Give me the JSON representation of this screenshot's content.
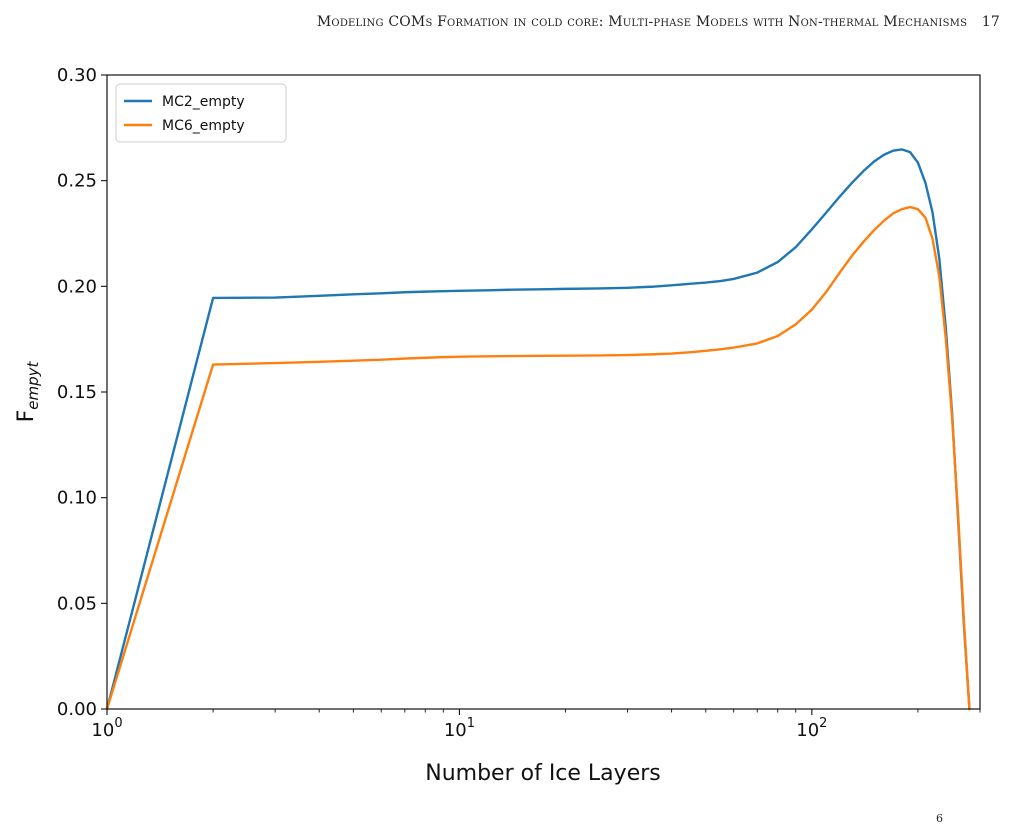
{
  "header": {
    "running_title": "Modeling COMs Formation in cold core: Multi-phase Models with Non-thermal Mechanisms",
    "page_number": "17"
  },
  "footer": {
    "mark": "6"
  },
  "chart_data": {
    "type": "line",
    "title": "",
    "xlabel": "Number of Ice Layers",
    "ylabel_main": "F",
    "ylabel_sub": "empyt",
    "xscale": "log",
    "xlim": [
      1,
      300
    ],
    "ylim": [
      0.0,
      0.3
    ],
    "grid": false,
    "legend_position": "top-left",
    "y_ticks": [
      "0.00",
      "0.05",
      "0.10",
      "0.15",
      "0.20",
      "0.25",
      "0.30"
    ],
    "x_ticks": [
      {
        "value": 1,
        "base": "10",
        "exp": "0"
      },
      {
        "value": 10,
        "base": "10",
        "exp": "1"
      },
      {
        "value": 100,
        "base": "10",
        "exp": "2"
      }
    ],
    "series": [
      {
        "name": "MC2_empty",
        "color": "#1f77b4",
        "x": [
          1,
          2,
          3,
          4,
          5,
          6,
          7,
          8,
          9,
          10,
          12,
          14,
          17,
          20,
          25,
          30,
          35,
          40,
          45,
          50,
          55,
          60,
          70,
          80,
          90,
          100,
          110,
          120,
          130,
          140,
          150,
          160,
          170,
          180,
          190,
          200,
          210,
          220,
          230,
          240,
          250,
          260,
          270,
          280
        ],
        "y": [
          0.0,
          0.1945,
          0.1947,
          0.1955,
          0.1962,
          0.1967,
          0.1972,
          0.1975,
          0.1977,
          0.1979,
          0.1981,
          0.1984,
          0.1986,
          0.1988,
          0.199,
          0.1993,
          0.1998,
          0.2005,
          0.2012,
          0.2018,
          0.2025,
          0.2035,
          0.2065,
          0.2115,
          0.2185,
          0.227,
          0.235,
          0.2425,
          0.249,
          0.2545,
          0.259,
          0.2622,
          0.2642,
          0.2648,
          0.2635,
          0.2585,
          0.249,
          0.235,
          0.213,
          0.18,
          0.14,
          0.09,
          0.04,
          0.0
        ]
      },
      {
        "name": "MC6_empty",
        "color": "#ff7f0e",
        "x": [
          1,
          2,
          3,
          4,
          5,
          6,
          7,
          8,
          9,
          10,
          12,
          14,
          17,
          20,
          25,
          30,
          35,
          40,
          45,
          50,
          55,
          60,
          70,
          80,
          90,
          100,
          110,
          120,
          130,
          140,
          150,
          160,
          170,
          180,
          190,
          200,
          210,
          220,
          230,
          240,
          250,
          260,
          270,
          280
        ],
        "y": [
          0.0,
          0.163,
          0.1637,
          0.1643,
          0.1648,
          0.1653,
          0.1658,
          0.1662,
          0.1665,
          0.1667,
          0.1669,
          0.167,
          0.1671,
          0.1672,
          0.1673,
          0.1675,
          0.1678,
          0.1682,
          0.1688,
          0.1695,
          0.1702,
          0.171,
          0.173,
          0.1765,
          0.182,
          0.189,
          0.1975,
          0.2065,
          0.2145,
          0.221,
          0.2265,
          0.231,
          0.2345,
          0.2365,
          0.2375,
          0.2365,
          0.2325,
          0.2225,
          0.2045,
          0.175,
          0.138,
          0.092,
          0.042,
          0.0
        ]
      }
    ]
  }
}
